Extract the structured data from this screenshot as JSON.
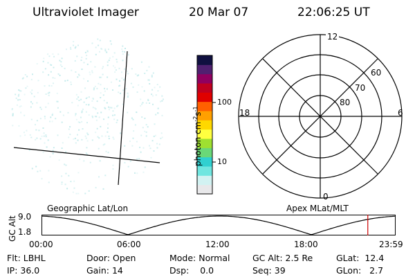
{
  "header": {
    "instrument": "Ultraviolet Imager",
    "date": "20 Mar 07",
    "time": "22:06:25 UT"
  },
  "colorbar": {
    "unit_label": "photon cm",
    "unit_exp1": "-2",
    "unit_mid": "s",
    "unit_exp2": "-1",
    "tick_high": "100",
    "tick_low": "10"
  },
  "polar_plot": {
    "mlt_labels": {
      "top": "12",
      "left": "18",
      "right": "6",
      "bottom": "0"
    },
    "lat_labels": [
      "60",
      "70",
      "80"
    ]
  },
  "footer_labels": {
    "left": "Geographic Lat/Lon",
    "right": "Apex MLat/MLT"
  },
  "altitude_panel": {
    "axis_title": "GC Alt",
    "y_high": "9.0",
    "y_low": "1.8",
    "time_ticks": [
      "00:00",
      "06:00",
      "12:00",
      "18:00",
      "23:59"
    ],
    "current_time_fraction": 0.9214
  },
  "info": {
    "row1": [
      {
        "key": "Flt:",
        "value": "LBHL"
      },
      {
        "key": "Door:",
        "value": "Open"
      },
      {
        "key": "Mode:",
        "value": "Normal"
      },
      {
        "key": "GC Alt:",
        "value": "2.5 Re"
      },
      {
        "key": "GLat:",
        "value": "12.4"
      }
    ],
    "row2": [
      {
        "key": "IP:",
        "value": "36.0"
      },
      {
        "key": "Gain:",
        "value": "14"
      },
      {
        "key": "Dsp:",
        "value": "0.0"
      },
      {
        "key": "Seq:",
        "value": "39"
      },
      {
        "key": "GLon:",
        "value": "2.7"
      }
    ]
  },
  "colors": {
    "colorbar": [
      "#e8e8ea",
      "#d2f2f2",
      "#70e6e0",
      "#30d0d0",
      "#6ad878",
      "#9fe030",
      "#ffff40",
      "#ffd800",
      "#ffa000",
      "#ff6000",
      "#e00000",
      "#c00020",
      "#900060",
      "#502070",
      "#101040"
    ],
    "marker": "#cc0000",
    "speckle": "#bfe9ea"
  }
}
